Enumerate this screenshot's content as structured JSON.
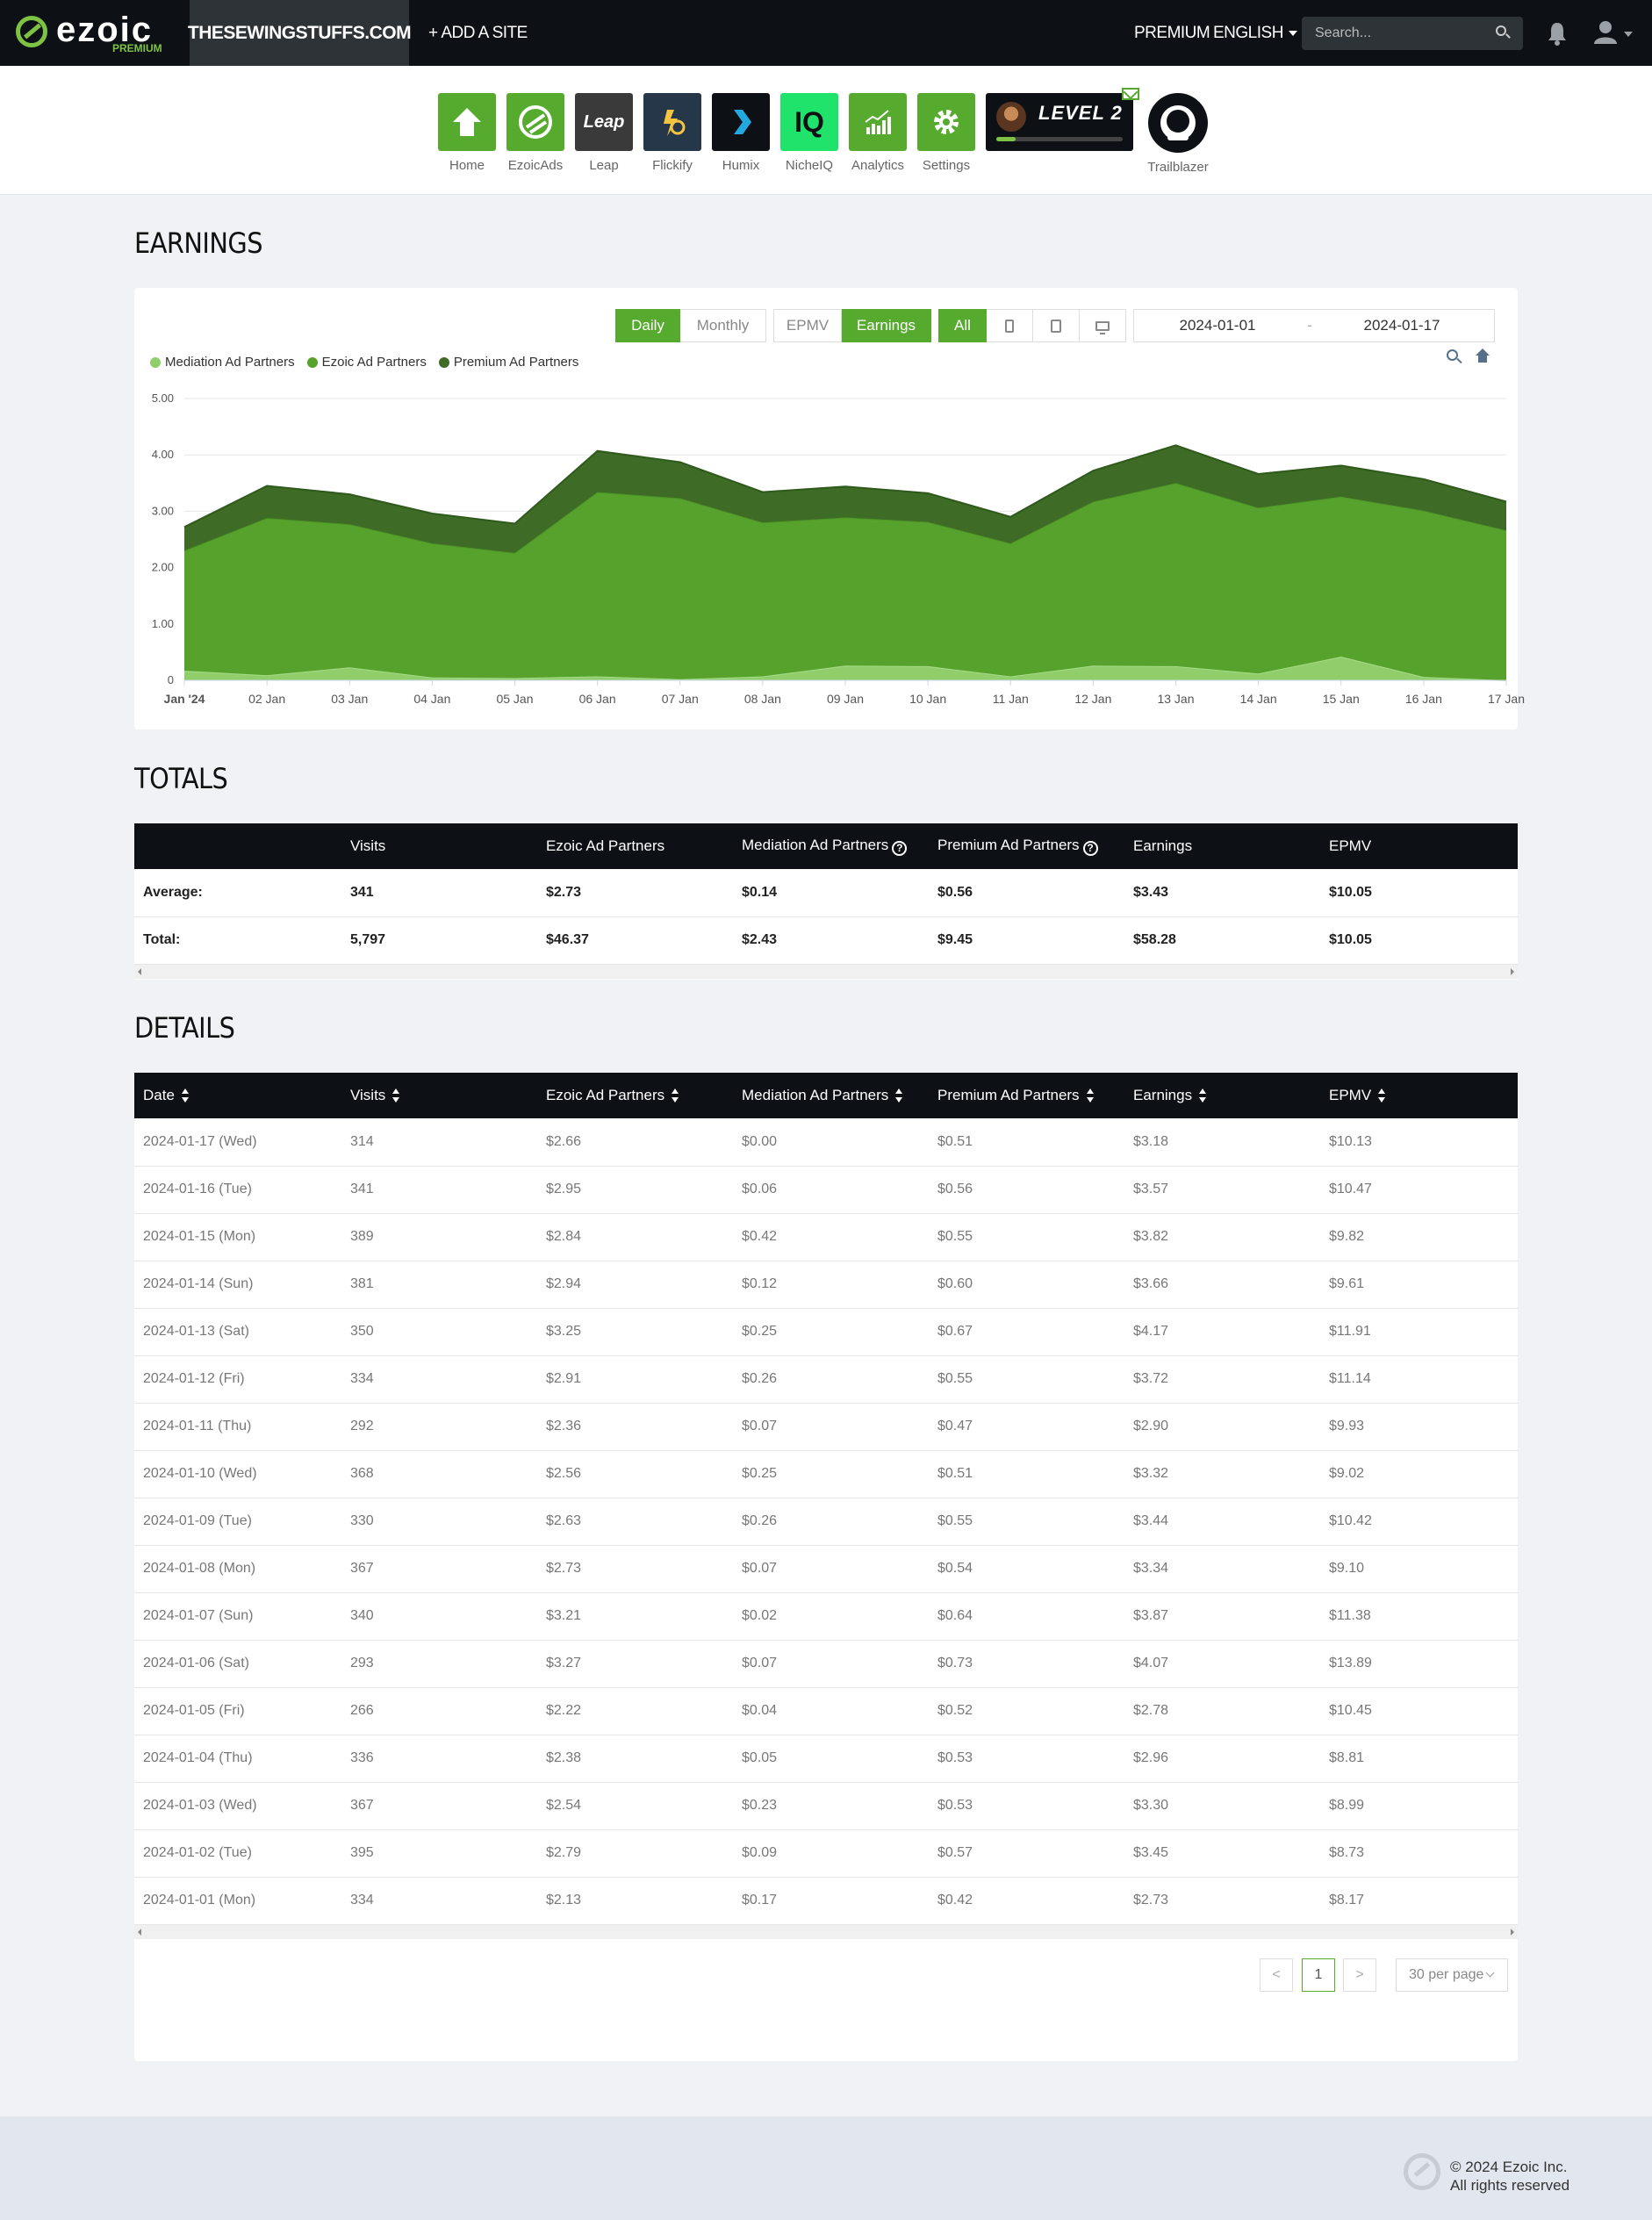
{
  "topbar": {
    "logo": "ezoic",
    "logo_sub": "PREMIUM",
    "site": "THESEWINGSTUFFS.COM",
    "add_site": "+ ADD A SITE",
    "premium": "PREMIUM",
    "language": "ENGLISH",
    "search_placeholder": "Search..."
  },
  "apps": [
    {
      "label": "Home",
      "color": "#56ab2f",
      "icon": "home-icon"
    },
    {
      "label": "EzoicAds",
      "color": "#56ab2f",
      "icon": "ezoicads-icon"
    },
    {
      "label": "Leap",
      "color": "#3a3a3a",
      "icon": "leap-icon",
      "text": "Leap"
    },
    {
      "label": "Flickify",
      "color": "#27374a",
      "icon": "flickify-icon"
    },
    {
      "label": "Humix",
      "color": "#0d1116",
      "icon": "humix-icon"
    },
    {
      "label": "NicheIQ",
      "color": "#1fe36a",
      "icon": "nicheiq-icon",
      "text": "IQ"
    },
    {
      "label": "Analytics",
      "color": "#56ab2f",
      "icon": "analytics-icon"
    },
    {
      "label": "Settings",
      "color": "#56ab2f",
      "icon": "gear-icon"
    }
  ],
  "level": {
    "text": "LEVEL 2",
    "progress": 0.15
  },
  "trailblazer": {
    "label": "Trailblazer"
  },
  "earnings": {
    "title": "EARNINGS",
    "period_buttons": [
      "Daily",
      "Monthly"
    ],
    "metric_buttons": [
      "EPMV",
      "Earnings"
    ],
    "device_all": "All",
    "date_start": "2024-01-01",
    "date_sep": "-",
    "date_end": "2024-01-17"
  },
  "chart_data": {
    "type": "area",
    "stacked": true,
    "legend_placement": "top-left",
    "grid": true,
    "ylim": [
      0,
      5
    ],
    "yticks": [
      "0",
      "1.00",
      "2.00",
      "3.00",
      "4.00",
      "5.00"
    ],
    "categories": [
      "Jan '24",
      "02 Jan",
      "03 Jan",
      "04 Jan",
      "05 Jan",
      "06 Jan",
      "07 Jan",
      "08 Jan",
      "09 Jan",
      "10 Jan",
      "11 Jan",
      "12 Jan",
      "13 Jan",
      "14 Jan",
      "15 Jan",
      "16 Jan",
      "17 Jan"
    ],
    "series": [
      {
        "name": "Mediation Ad Partners",
        "color": "#8fce6b",
        "values": [
          0.17,
          0.09,
          0.23,
          0.05,
          0.04,
          0.07,
          0.02,
          0.07,
          0.26,
          0.25,
          0.07,
          0.26,
          0.25,
          0.12,
          0.42,
          0.06,
          0.0
        ]
      },
      {
        "name": "Ezoic Ad Partners",
        "color": "#56a22d",
        "values": [
          2.13,
          2.79,
          2.54,
          2.38,
          2.22,
          3.27,
          3.21,
          2.73,
          2.63,
          2.56,
          2.36,
          2.91,
          3.25,
          2.94,
          2.84,
          2.95,
          2.66
        ]
      },
      {
        "name": "Premium Ad Partners",
        "color": "#3e6b25",
        "values": [
          0.42,
          0.57,
          0.53,
          0.53,
          0.52,
          0.73,
          0.64,
          0.54,
          0.55,
          0.51,
          0.47,
          0.55,
          0.67,
          0.6,
          0.55,
          0.56,
          0.51
        ]
      }
    ]
  },
  "totals": {
    "title": "TOTALS",
    "headers": [
      "",
      "Visits",
      "Ezoic Ad Partners",
      "Mediation Ad Partners",
      "Premium Ad Partners",
      "Earnings",
      "EPMV"
    ],
    "rows": [
      [
        "Average:",
        "341",
        "$2.73",
        "$0.14",
        "$0.56",
        "$3.43",
        "$10.05"
      ],
      [
        "Total:",
        "5,797",
        "$46.37",
        "$2.43",
        "$9.45",
        "$58.28",
        "$10.05"
      ]
    ]
  },
  "details": {
    "title": "DETAILS",
    "headers": [
      "Date",
      "Visits",
      "Ezoic Ad Partners",
      "Mediation Ad Partners",
      "Premium Ad Partners",
      "Earnings",
      "EPMV"
    ],
    "rows": [
      [
        "2024-01-17 (Wed)",
        "314",
        "$2.66",
        "$0.00",
        "$0.51",
        "$3.18",
        "$10.13"
      ],
      [
        "2024-01-16 (Tue)",
        "341",
        "$2.95",
        "$0.06",
        "$0.56",
        "$3.57",
        "$10.47"
      ],
      [
        "2024-01-15 (Mon)",
        "389",
        "$2.84",
        "$0.42",
        "$0.55",
        "$3.82",
        "$9.82"
      ],
      [
        "2024-01-14 (Sun)",
        "381",
        "$2.94",
        "$0.12",
        "$0.60",
        "$3.66",
        "$9.61"
      ],
      [
        "2024-01-13 (Sat)",
        "350",
        "$3.25",
        "$0.25",
        "$0.67",
        "$4.17",
        "$11.91"
      ],
      [
        "2024-01-12 (Fri)",
        "334",
        "$2.91",
        "$0.26",
        "$0.55",
        "$3.72",
        "$11.14"
      ],
      [
        "2024-01-11 (Thu)",
        "292",
        "$2.36",
        "$0.07",
        "$0.47",
        "$2.90",
        "$9.93"
      ],
      [
        "2024-01-10 (Wed)",
        "368",
        "$2.56",
        "$0.25",
        "$0.51",
        "$3.32",
        "$9.02"
      ],
      [
        "2024-01-09 (Tue)",
        "330",
        "$2.63",
        "$0.26",
        "$0.55",
        "$3.44",
        "$10.42"
      ],
      [
        "2024-01-08 (Mon)",
        "367",
        "$2.73",
        "$0.07",
        "$0.54",
        "$3.34",
        "$9.10"
      ],
      [
        "2024-01-07 (Sun)",
        "340",
        "$3.21",
        "$0.02",
        "$0.64",
        "$3.87",
        "$11.38"
      ],
      [
        "2024-01-06 (Sat)",
        "293",
        "$3.27",
        "$0.07",
        "$0.73",
        "$4.07",
        "$13.89"
      ],
      [
        "2024-01-05 (Fri)",
        "266",
        "$2.22",
        "$0.04",
        "$0.52",
        "$2.78",
        "$10.45"
      ],
      [
        "2024-01-04 (Thu)",
        "336",
        "$2.38",
        "$0.05",
        "$0.53",
        "$2.96",
        "$8.81"
      ],
      [
        "2024-01-03 (Wed)",
        "367",
        "$2.54",
        "$0.23",
        "$0.53",
        "$3.30",
        "$8.99"
      ],
      [
        "2024-01-02 (Tue)",
        "395",
        "$2.79",
        "$0.09",
        "$0.57",
        "$3.45",
        "$8.73"
      ],
      [
        "2024-01-01 (Mon)",
        "334",
        "$2.13",
        "$0.17",
        "$0.42",
        "$2.73",
        "$8.17"
      ]
    ]
  },
  "pagination": {
    "prev": "<",
    "page": "1",
    "next": ">",
    "per_page": "30 per page"
  },
  "footer": {
    "line1": "© 2024 Ezoic Inc.",
    "line2": "All rights reserved"
  }
}
